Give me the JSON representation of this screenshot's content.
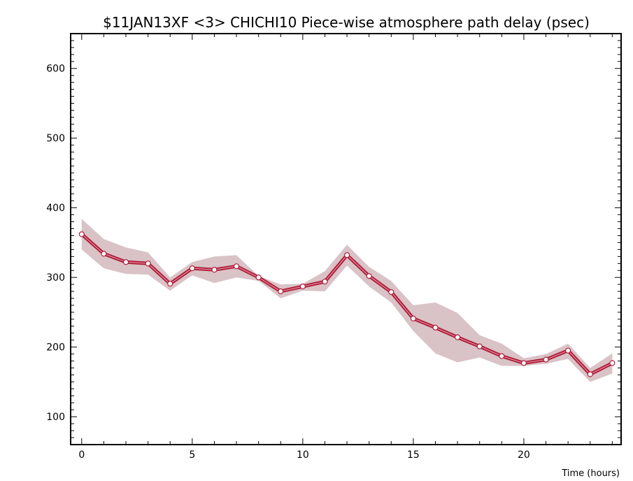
{
  "chart_data": {
    "type": "line",
    "title": "$11JAN13XF <3>  CHICHI10  Piece-wise atmosphere path delay (psec)",
    "xlabel": "Time (hours)",
    "ylabel": "",
    "xlim": [
      -0.5,
      24.4
    ],
    "ylim": [
      60,
      650
    ],
    "x_major_ticks": [
      0,
      5,
      10,
      15,
      20
    ],
    "x_tick_labels": [
      "0",
      "5",
      "10",
      "15",
      "20"
    ],
    "y_major_ticks": [
      100,
      200,
      300,
      400,
      500,
      600
    ],
    "y_tick_labels": [
      "100",
      "200",
      "300",
      "400",
      "500",
      "600"
    ],
    "grid": false,
    "legend": "none",
    "series": [
      {
        "x": [
          0,
          1,
          2,
          3,
          4,
          5,
          6,
          7,
          8,
          9,
          10,
          11,
          12,
          13,
          14,
          15,
          16,
          17,
          18,
          19,
          20,
          21,
          22,
          23,
          24
        ],
        "values": [
          362,
          334,
          322,
          320,
          291,
          313,
          311,
          316,
          300,
          280,
          287,
          294,
          332,
          302,
          279,
          241,
          228,
          214,
          201,
          187,
          177,
          182,
          195,
          161,
          177
        ],
        "band_upper": [
          384,
          355,
          343,
          336,
          300,
          322,
          330,
          332,
          302,
          290,
          291,
          309,
          347,
          315,
          295,
          260,
          264,
          249,
          217,
          205,
          184,
          190,
          205,
          170,
          191
        ],
        "band_lower": [
          340,
          313,
          305,
          304,
          281,
          303,
          292,
          300,
          295,
          270,
          281,
          280,
          317,
          287,
          264,
          223,
          191,
          178,
          185,
          173,
          173,
          176,
          183,
          150,
          162
        ]
      }
    ],
    "colors": {
      "line": "#b01e3c",
      "band": "#d9c3c6",
      "marker_fill": "#ffffff"
    }
  }
}
